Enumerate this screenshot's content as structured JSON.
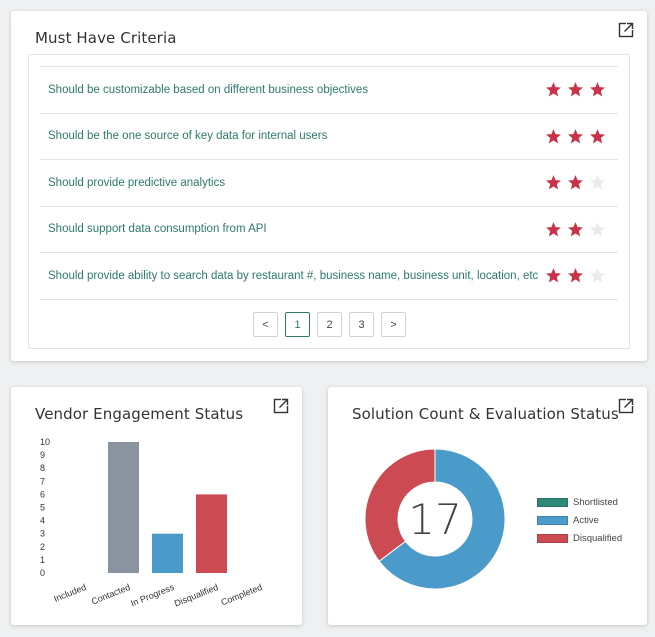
{
  "criteria_card": {
    "title": "Must Have Criteria",
    "items": [
      {
        "text": "Should be customizable based on different business objectives",
        "rating": 3
      },
      {
        "text": "Should be the one source of key data for internal users",
        "rating": 3
      },
      {
        "text": "Should provide predictive analytics",
        "rating": 2
      },
      {
        "text": "Should support data consumption from API",
        "rating": 2
      },
      {
        "text": "Should provide ability to search data by restaurant #, business name, business unit, location, etc",
        "rating": 2
      }
    ],
    "pagination": {
      "prev": "<",
      "pages": [
        "1",
        "2",
        "3"
      ],
      "current": "1",
      "next": ">"
    }
  },
  "vendor_card": {
    "title": "Vendor Engagement Status"
  },
  "solution_card": {
    "title": "Solution Count & Evaluation Status",
    "total": "17",
    "legend": [
      "Shortlisted",
      "Active",
      "Disqualified"
    ]
  },
  "colors": {
    "star_filled": "#c8334a",
    "star_empty": "#e9eaec",
    "accent": "#2d7a6b"
  },
  "chart_data": [
    {
      "type": "bar",
      "categories": [
        "Included",
        "Contacted",
        "In Progress",
        "Disqualified",
        "Completed"
      ],
      "values": [
        0,
        10,
        3,
        6,
        0
      ],
      "colors": [
        "#8a94a0",
        "#8a94a0",
        "#4a9bc9",
        "#cc4b52",
        "#8a94a0"
      ],
      "yticks": [
        0,
        1,
        2,
        3,
        4,
        5,
        6,
        7,
        8,
        9,
        10
      ],
      "ylim": [
        0,
        10
      ],
      "grid": false,
      "legend": "none"
    },
    {
      "type": "pie",
      "labels": [
        "Shortlisted",
        "Active",
        "Disqualified"
      ],
      "values": [
        0,
        11,
        6
      ],
      "colors": [
        "#2d8a78",
        "#4a9bc9",
        "#cc4b52"
      ],
      "center_label": "17",
      "legend": "right"
    }
  ]
}
